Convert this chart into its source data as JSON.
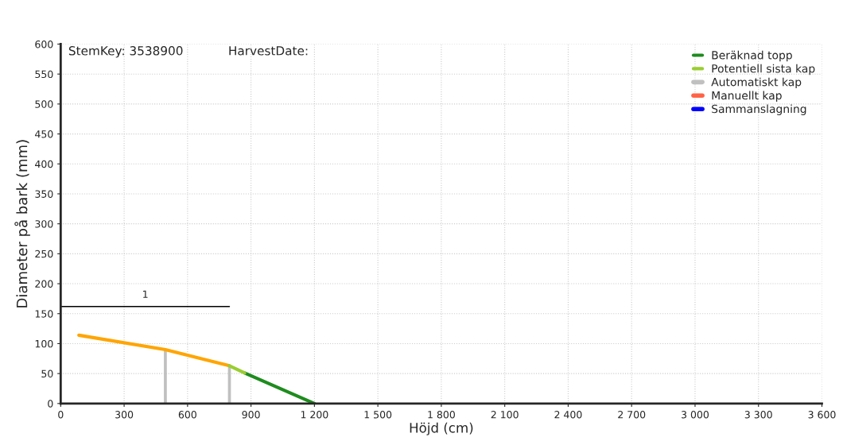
{
  "chart_data": {
    "type": "line",
    "xlabel": "Höjd (cm)",
    "ylabel": "Diameter på bark (mm)",
    "annotations": [
      "StemKey: 3538900",
      "HarvestDate:",
      {
        "text": "1",
        "x": 400,
        "y": 162
      }
    ],
    "xlim": [
      0,
      3600
    ],
    "xticks": [
      0,
      300,
      600,
      900,
      {
        "value": 1200,
        "label": "1 200"
      },
      {
        "value": 1500,
        "label": "1 500"
      },
      {
        "value": 1800,
        "label": "1 800"
      },
      {
        "value": 2100,
        "label": "2 100"
      },
      {
        "value": 2400,
        "label": "2 400"
      },
      {
        "value": 2700,
        "label": "2 700"
      },
      {
        "value": 3000,
        "label": "3 000"
      },
      {
        "value": 3300,
        "label": "3 300"
      },
      {
        "value": 3600,
        "label": "3 600"
      }
    ],
    "ylim": [
      0,
      600
    ],
    "yticks": [
      0,
      50,
      100,
      150,
      200,
      250,
      300,
      350,
      400,
      450,
      500,
      550,
      600
    ],
    "grid": true,
    "legend": "top right",
    "series": [
      {
        "color": "#ffa500",
        "x": [
          86,
          495,
          798
        ],
        "values": [
          114,
          90,
          63
        ]
      },
      {
        "name": "Beräknad topp",
        "color": "#1e8c1e",
        "x": [
          870,
          1200
        ],
        "values": [
          51,
          0
        ]
      },
      {
        "name": "Potentiell sista kap",
        "color": "#9acd32",
        "x": [
          798,
          870
        ],
        "values": [
          63,
          51
        ]
      },
      {
        "type": "bar",
        "name": "Automatiskt kap",
        "color": "#c0c0c0",
        "x": [
          495,
          798
        ],
        "values": [
          90,
          63
        ]
      },
      {
        "type": "bar",
        "name": "Manuellt kap",
        "color": "#ff6347"
      },
      {
        "type": "bar",
        "name": "Sammanslagning",
        "color": "#0000ff"
      },
      {
        "color": "#000000",
        "x": [
          0,
          798
        ],
        "values": [
          162,
          162
        ]
      }
    ]
  }
}
